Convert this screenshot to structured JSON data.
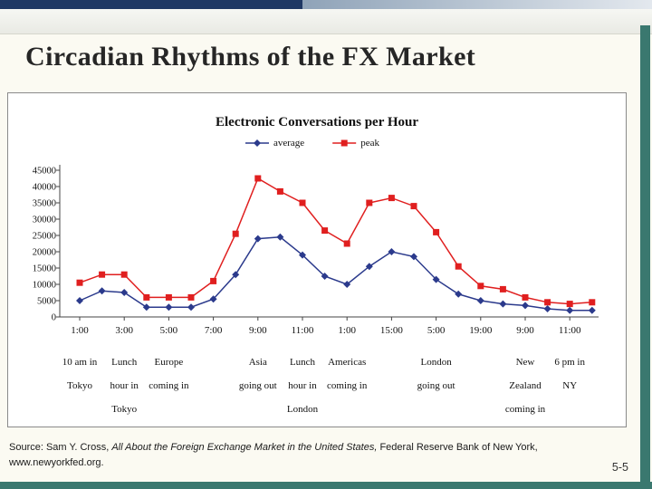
{
  "slide": {
    "title": "Circadian Rhythms of the FX Market",
    "page_number": "5-5",
    "source": {
      "prefix": "Source: Sam Y. Cross, ",
      "italic": "All About the Foreign Exchange Market in the United States,",
      "suffix": " Federal Reserve Bank of New York,",
      "line2": "www.newyorkfed.org."
    },
    "accent_navy": "#1f3864",
    "accent_teal": "#3a786f"
  },
  "chart_data": {
    "type": "line",
    "title": "Electronic Conversations per Hour",
    "legend_position": "top",
    "grid": false,
    "ylim": [
      0,
      45000
    ],
    "y_ticks": [
      0,
      5000,
      10000,
      15000,
      20000,
      25000,
      30000,
      35000,
      40000,
      45000
    ],
    "x_tick_labels": [
      "1:00",
      "3:00",
      "5:00",
      "7:00",
      "9:00",
      "11:00",
      "1:00",
      "15:00",
      "5:00",
      "19:00",
      "9:00",
      "11:00"
    ],
    "series": [
      {
        "name": "average",
        "color": "#2b3a8c",
        "marker": "diamond",
        "values": [
          5000,
          8000,
          7500,
          3000,
          3000,
          3000,
          5500,
          13000,
          24000,
          24500,
          19000,
          12500,
          10000,
          15500,
          20000,
          18500,
          11500,
          7000,
          5000,
          4000,
          3500,
          2500,
          2000,
          2000
        ]
      },
      {
        "name": "peak",
        "color": "#e01f1f",
        "marker": "square",
        "values": [
          10500,
          13000,
          13000,
          6000,
          6000,
          6000,
          11000,
          25500,
          42500,
          38500,
          35000,
          26500,
          22500,
          35000,
          36500,
          34000,
          26000,
          15500,
          9500,
          8500,
          6000,
          4500,
          4000,
          4500
        ]
      }
    ],
    "annotations": [
      {
        "tick": 0,
        "lines": [
          "10 am in",
          "Tokyo"
        ]
      },
      {
        "tick": 1,
        "lines": [
          "Lunch",
          "hour in",
          "Tokyo"
        ]
      },
      {
        "tick": 2,
        "lines": [
          "Europe",
          "coming in"
        ]
      },
      {
        "tick": 4,
        "lines": [
          "Asia",
          "going out"
        ]
      },
      {
        "tick": 5,
        "lines": [
          "Lunch",
          "hour in",
          "London"
        ]
      },
      {
        "tick": 6,
        "lines": [
          "Americas",
          "coming in"
        ]
      },
      {
        "tick": 8,
        "lines": [
          "London",
          "going out"
        ]
      },
      {
        "tick": 10,
        "lines": [
          "New",
          "Zealand",
          "coming in"
        ]
      },
      {
        "tick": 11,
        "lines": [
          "6 pm in",
          "NY"
        ]
      }
    ]
  }
}
